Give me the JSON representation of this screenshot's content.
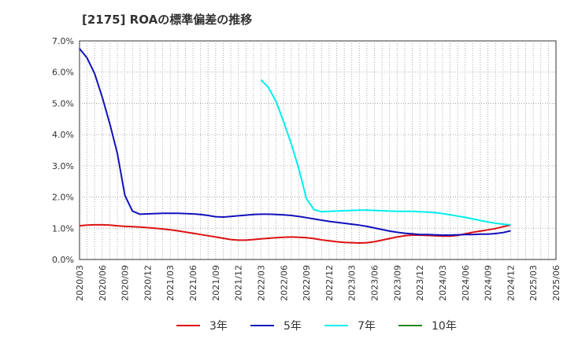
{
  "chart_data": {
    "type": "line",
    "title": "[2175]  ROAの標準偏差の推移",
    "xlabel": "",
    "ylabel": "",
    "ylim": [
      0,
      7
    ],
    "y_ticks": [
      "0.0%",
      "1.0%",
      "2.0%",
      "3.0%",
      "4.0%",
      "5.0%",
      "6.0%",
      "7.0%"
    ],
    "x_ticks": [
      "2020/03",
      "2020/06",
      "2020/09",
      "2020/12",
      "2021/03",
      "2021/06",
      "2021/09",
      "2021/12",
      "2022/03",
      "2022/06",
      "2022/09",
      "2022/12",
      "2023/03",
      "2023/06",
      "2023/09",
      "2023/12",
      "2024/03",
      "2024/06",
      "2024/09",
      "2024/12",
      "2025/03",
      "2025/06"
    ],
    "legend_position": "bottom",
    "series": [
      {
        "name": "3年",
        "color": "#dd1111",
        "points": [
          [
            0,
            1.08
          ],
          [
            1,
            1.1
          ],
          [
            2,
            1.11
          ],
          [
            3,
            1.11
          ],
          [
            4,
            1.1
          ],
          [
            5,
            1.08
          ],
          [
            6,
            1.06
          ],
          [
            7,
            1.05
          ],
          [
            8,
            1.04
          ],
          [
            9,
            1.02
          ],
          [
            10,
            1.0
          ],
          [
            11,
            0.98
          ],
          [
            12,
            0.95
          ],
          [
            13,
            0.92
          ],
          [
            14,
            0.88
          ],
          [
            15,
            0.84
          ],
          [
            16,
            0.8
          ],
          [
            17,
            0.76
          ],
          [
            18,
            0.72
          ],
          [
            19,
            0.68
          ],
          [
            20,
            0.64
          ],
          [
            21,
            0.62
          ],
          [
            22,
            0.62
          ],
          [
            23,
            0.64
          ],
          [
            24,
            0.66
          ],
          [
            25,
            0.68
          ],
          [
            26,
            0.7
          ],
          [
            27,
            0.71
          ],
          [
            28,
            0.72
          ],
          [
            29,
            0.71
          ],
          [
            30,
            0.7
          ],
          [
            31,
            0.67
          ],
          [
            32,
            0.63
          ],
          [
            33,
            0.6
          ],
          [
            34,
            0.57
          ],
          [
            35,
            0.55
          ],
          [
            36,
            0.54
          ],
          [
            37,
            0.53
          ],
          [
            38,
            0.54
          ],
          [
            39,
            0.57
          ],
          [
            40,
            0.62
          ],
          [
            41,
            0.67
          ],
          [
            42,
            0.72
          ],
          [
            43,
            0.76
          ],
          [
            44,
            0.78
          ],
          [
            45,
            0.78
          ],
          [
            46,
            0.77
          ],
          [
            47,
            0.76
          ],
          [
            48,
            0.75
          ],
          [
            49,
            0.75
          ],
          [
            50,
            0.77
          ],
          [
            51,
            0.82
          ],
          [
            52,
            0.87
          ],
          [
            53,
            0.91
          ],
          [
            54,
            0.95
          ],
          [
            55,
            0.99
          ],
          [
            56,
            1.05
          ],
          [
            57,
            1.1
          ]
        ]
      },
      {
        "name": "5年",
        "color": "#1111bb",
        "points": [
          [
            0,
            6.75
          ],
          [
            1,
            6.45
          ],
          [
            2,
            5.95
          ],
          [
            3,
            5.2
          ],
          [
            4,
            4.35
          ],
          [
            5,
            3.4
          ],
          [
            6,
            2.05
          ],
          [
            7,
            1.55
          ],
          [
            8,
            1.45
          ],
          [
            9,
            1.46
          ],
          [
            10,
            1.47
          ],
          [
            11,
            1.48
          ],
          [
            12,
            1.48
          ],
          [
            13,
            1.48
          ],
          [
            14,
            1.47
          ],
          [
            15,
            1.46
          ],
          [
            16,
            1.44
          ],
          [
            17,
            1.41
          ],
          [
            18,
            1.37
          ],
          [
            19,
            1.36
          ],
          [
            20,
            1.38
          ],
          [
            21,
            1.4
          ],
          [
            22,
            1.42
          ],
          [
            23,
            1.44
          ],
          [
            24,
            1.45
          ],
          [
            25,
            1.45
          ],
          [
            26,
            1.44
          ],
          [
            27,
            1.43
          ],
          [
            28,
            1.41
          ],
          [
            29,
            1.38
          ],
          [
            30,
            1.34
          ],
          [
            31,
            1.3
          ],
          [
            32,
            1.26
          ],
          [
            33,
            1.22
          ],
          [
            34,
            1.19
          ],
          [
            35,
            1.16
          ],
          [
            36,
            1.13
          ],
          [
            37,
            1.1
          ],
          [
            38,
            1.06
          ],
          [
            39,
            1.01
          ],
          [
            40,
            0.96
          ],
          [
            41,
            0.91
          ],
          [
            42,
            0.87
          ],
          [
            43,
            0.84
          ],
          [
            44,
            0.82
          ],
          [
            45,
            0.8
          ],
          [
            46,
            0.8
          ],
          [
            47,
            0.79
          ],
          [
            48,
            0.78
          ],
          [
            49,
            0.78
          ],
          [
            50,
            0.79
          ],
          [
            51,
            0.8
          ],
          [
            52,
            0.8
          ],
          [
            53,
            0.81
          ],
          [
            54,
            0.81
          ],
          [
            55,
            0.83
          ],
          [
            56,
            0.86
          ],
          [
            57,
            0.92
          ]
        ]
      },
      {
        "name": "7年",
        "color": "#00eeee",
        "points": [
          [
            24,
            5.75
          ],
          [
            25,
            5.5
          ],
          [
            26,
            5.05
          ],
          [
            27,
            4.4
          ],
          [
            28,
            3.7
          ],
          [
            29,
            2.9
          ],
          [
            30,
            1.95
          ],
          [
            31,
            1.6
          ],
          [
            32,
            1.53
          ],
          [
            33,
            1.54
          ],
          [
            34,
            1.55
          ],
          [
            35,
            1.56
          ],
          [
            36,
            1.57
          ],
          [
            37,
            1.58
          ],
          [
            38,
            1.58
          ],
          [
            39,
            1.57
          ],
          [
            40,
            1.56
          ],
          [
            41,
            1.55
          ],
          [
            42,
            1.54
          ],
          [
            43,
            1.54
          ],
          [
            44,
            1.54
          ],
          [
            45,
            1.53
          ],
          [
            46,
            1.52
          ],
          [
            47,
            1.5
          ],
          [
            48,
            1.47
          ],
          [
            49,
            1.43
          ],
          [
            50,
            1.39
          ],
          [
            51,
            1.35
          ],
          [
            52,
            1.3
          ],
          [
            53,
            1.25
          ],
          [
            54,
            1.2
          ],
          [
            55,
            1.16
          ],
          [
            56,
            1.13
          ],
          [
            57,
            1.11
          ]
        ]
      },
      {
        "name": "10年",
        "color": "#228822",
        "points": []
      }
    ]
  }
}
